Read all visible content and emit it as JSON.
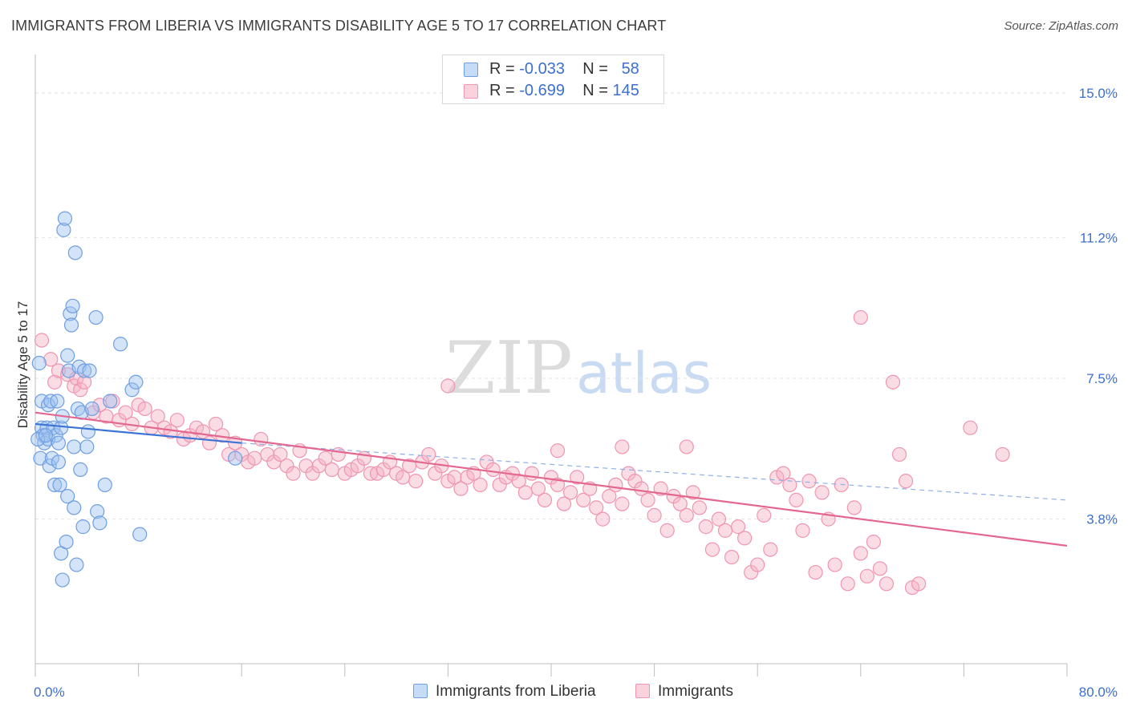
{
  "header": {
    "title": "IMMIGRANTS FROM LIBERIA VS IMMIGRANTS DISABILITY AGE 5 TO 17 CORRELATION CHART",
    "source": "Source: ZipAtlas.com"
  },
  "watermark": {
    "zip": "ZIP",
    "atlas": "atlas"
  },
  "legend": {
    "rows": [
      {
        "r_label": "R =",
        "r_value": "-0.033",
        "n_label": "N =",
        "n_value": "58",
        "color": "#9dc0ef"
      },
      {
        "r_label": "R =",
        "r_value": "-0.699",
        "n_label": "N =",
        "n_value": "145",
        "color": "#f4b2c6"
      }
    ],
    "bottom": [
      {
        "label": "Immigrants from Liberia",
        "color": "#9dc0ef"
      },
      {
        "label": "Immigrants",
        "color": "#f4b2c6"
      }
    ]
  },
  "chart_data": {
    "type": "scatter",
    "title": "IMMIGRANTS FROM LIBERIA VS IMMIGRANTS DISABILITY AGE 5 TO 17 CORRELATION CHART",
    "xlabel": "",
    "ylabel": "Disability Age 5 to 17",
    "xlim": [
      0,
      80
    ],
    "ylim": [
      0,
      15.8
    ],
    "x_tick_labels": [
      "0.0%",
      "80.0%"
    ],
    "y_ticks": [
      3.8,
      7.5,
      11.2,
      15.0
    ],
    "y_tick_labels": [
      "3.8%",
      "7.5%",
      "11.2%",
      "15.0%"
    ],
    "grid": true,
    "legend_position": "top-center",
    "colors": {
      "liberia": "#5b8ed8",
      "immigrants": "#e8769b",
      "tick_label": "#3d6fcf"
    },
    "series": [
      {
        "name": "Immigrants from Liberia",
        "marker_fill": "#9dc0ef",
        "marker_stroke": "#6f9fe0",
        "trend": {
          "x": [
            0,
            16
          ],
          "y": [
            6.3,
            5.8
          ],
          "color": "#3b74d6",
          "style": "solid"
        },
        "trend_extension": {
          "x": [
            16,
            80
          ],
          "y": [
            5.8,
            4.3
          ],
          "color": "#8eb0e6",
          "style": "dashed"
        },
        "points": [
          [
            0.3,
            7.9
          ],
          [
            0.5,
            6.9
          ],
          [
            0.5,
            6.2
          ],
          [
            0.6,
            6.0
          ],
          [
            0.7,
            5.8
          ],
          [
            0.4,
            5.4
          ],
          [
            0.9,
            6.2
          ],
          [
            1.0,
            6.8
          ],
          [
            1.0,
            5.9
          ],
          [
            1.1,
            5.2
          ],
          [
            1.2,
            6.9
          ],
          [
            1.4,
            6.2
          ],
          [
            1.3,
            5.4
          ],
          [
            1.5,
            4.7
          ],
          [
            1.6,
            6.0
          ],
          [
            1.7,
            6.9
          ],
          [
            1.8,
            5.8
          ],
          [
            1.8,
            5.3
          ],
          [
            2.0,
            6.2
          ],
          [
            2.1,
            6.5
          ],
          [
            2.0,
            2.9
          ],
          [
            2.1,
            2.2
          ],
          [
            2.2,
            11.4
          ],
          [
            2.3,
            11.7
          ],
          [
            2.4,
            3.2
          ],
          [
            2.5,
            4.4
          ],
          [
            2.5,
            8.1
          ],
          [
            2.6,
            7.7
          ],
          [
            2.7,
            9.2
          ],
          [
            2.8,
            8.9
          ],
          [
            2.9,
            9.4
          ],
          [
            3.0,
            4.1
          ],
          [
            3.0,
            5.7
          ],
          [
            3.1,
            10.8
          ],
          [
            3.2,
            2.6
          ],
          [
            3.3,
            6.7
          ],
          [
            3.4,
            7.8
          ],
          [
            3.5,
            5.1
          ],
          [
            3.6,
            6.6
          ],
          [
            3.7,
            3.6
          ],
          [
            3.8,
            7.7
          ],
          [
            4.0,
            5.7
          ],
          [
            4.1,
            6.1
          ],
          [
            4.2,
            7.7
          ],
          [
            4.4,
            6.7
          ],
          [
            4.7,
            9.1
          ],
          [
            4.8,
            4.0
          ],
          [
            5.0,
            3.7
          ],
          [
            5.4,
            4.7
          ],
          [
            5.8,
            6.9
          ],
          [
            6.6,
            8.4
          ],
          [
            7.5,
            7.2
          ],
          [
            7.8,
            7.4
          ],
          [
            8.1,
            3.4
          ],
          [
            15.5,
            5.4
          ],
          [
            0.2,
            5.9
          ],
          [
            0.8,
            6.0
          ],
          [
            1.9,
            4.7
          ]
        ]
      },
      {
        "name": "Immigrants",
        "marker_fill": "#f4b2c6",
        "marker_stroke": "#ef95b1",
        "trend": {
          "x": [
            0,
            80
          ],
          "y": [
            6.6,
            3.1
          ],
          "color": "#e3678f",
          "style": "solid"
        },
        "points": [
          [
            0.5,
            8.5
          ],
          [
            1.2,
            8.0
          ],
          [
            1.5,
            7.4
          ],
          [
            1.8,
            7.7
          ],
          [
            2.5,
            7.6
          ],
          [
            3.0,
            7.3
          ],
          [
            3.2,
            7.5
          ],
          [
            3.5,
            7.2
          ],
          [
            3.8,
            7.4
          ],
          [
            4.5,
            6.6
          ],
          [
            5.0,
            6.8
          ],
          [
            5.5,
            6.5
          ],
          [
            6.0,
            6.9
          ],
          [
            6.5,
            6.4
          ],
          [
            7.0,
            6.6
          ],
          [
            7.5,
            6.3
          ],
          [
            8.0,
            6.8
          ],
          [
            8.5,
            6.7
          ],
          [
            9.0,
            6.2
          ],
          [
            9.5,
            6.5
          ],
          [
            10.0,
            6.2
          ],
          [
            10.5,
            6.1
          ],
          [
            11.0,
            6.4
          ],
          [
            11.5,
            5.9
          ],
          [
            12.0,
            6.0
          ],
          [
            12.5,
            6.2
          ],
          [
            13.0,
            6.1
          ],
          [
            13.5,
            5.8
          ],
          [
            14.0,
            6.3
          ],
          [
            14.5,
            6.0
          ],
          [
            15.0,
            5.5
          ],
          [
            15.5,
            5.8
          ],
          [
            16.0,
            5.5
          ],
          [
            16.5,
            5.3
          ],
          [
            17.0,
            5.4
          ],
          [
            17.5,
            5.9
          ],
          [
            18.0,
            5.5
          ],
          [
            18.5,
            5.3
          ],
          [
            19.0,
            5.5
          ],
          [
            19.5,
            5.2
          ],
          [
            20.0,
            5.0
          ],
          [
            20.5,
            5.6
          ],
          [
            21.0,
            5.2
          ],
          [
            21.5,
            5.0
          ],
          [
            22.0,
            5.2
          ],
          [
            22.5,
            5.4
          ],
          [
            23.0,
            5.1
          ],
          [
            23.5,
            5.5
          ],
          [
            24.0,
            5.0
          ],
          [
            24.5,
            5.1
          ],
          [
            25.0,
            5.2
          ],
          [
            25.5,
            5.4
          ],
          [
            26.0,
            5.0
          ],
          [
            26.5,
            5.0
          ],
          [
            27.0,
            5.1
          ],
          [
            27.5,
            5.3
          ],
          [
            28.0,
            5.0
          ],
          [
            28.5,
            4.9
          ],
          [
            29.0,
            5.2
          ],
          [
            29.5,
            4.8
          ],
          [
            30.0,
            5.3
          ],
          [
            30.5,
            5.5
          ],
          [
            31.0,
            5.0
          ],
          [
            31.5,
            5.2
          ],
          [
            32.0,
            4.8
          ],
          [
            32.5,
            4.9
          ],
          [
            33.0,
            4.6
          ],
          [
            33.5,
            4.9
          ],
          [
            34.0,
            5.0
          ],
          [
            34.5,
            4.7
          ],
          [
            35.0,
            5.3
          ],
          [
            35.5,
            5.1
          ],
          [
            36.0,
            4.7
          ],
          [
            36.5,
            4.9
          ],
          [
            37.0,
            5.0
          ],
          [
            37.5,
            4.8
          ],
          [
            38.0,
            4.5
          ],
          [
            38.5,
            5.0
          ],
          [
            39.0,
            4.6
          ],
          [
            39.5,
            4.3
          ],
          [
            40.0,
            4.9
          ],
          [
            40.5,
            4.7
          ],
          [
            41.0,
            4.2
          ],
          [
            41.5,
            4.5
          ],
          [
            42.0,
            4.9
          ],
          [
            42.5,
            4.3
          ],
          [
            43.0,
            4.6
          ],
          [
            43.5,
            4.1
          ],
          [
            44.0,
            3.8
          ],
          [
            44.5,
            4.4
          ],
          [
            45.0,
            4.7
          ],
          [
            45.5,
            4.2
          ],
          [
            46.0,
            5.0
          ],
          [
            46.5,
            4.8
          ],
          [
            47.0,
            4.6
          ],
          [
            47.5,
            4.3
          ],
          [
            48.0,
            3.9
          ],
          [
            48.5,
            4.6
          ],
          [
            49.0,
            3.5
          ],
          [
            49.5,
            4.4
          ],
          [
            50.0,
            4.2
          ],
          [
            50.5,
            3.9
          ],
          [
            51.0,
            4.5
          ],
          [
            51.5,
            4.1
          ],
          [
            52.0,
            3.6
          ],
          [
            52.5,
            3.0
          ],
          [
            53.0,
            3.8
          ],
          [
            53.5,
            3.5
          ],
          [
            54.0,
            2.8
          ],
          [
            54.5,
            3.6
          ],
          [
            55.0,
            3.3
          ],
          [
            55.5,
            2.4
          ],
          [
            56.0,
            2.6
          ],
          [
            56.5,
            3.9
          ],
          [
            57.0,
            3.0
          ],
          [
            57.5,
            4.9
          ],
          [
            58.0,
            5.0
          ],
          [
            58.5,
            4.7
          ],
          [
            59.0,
            4.3
          ],
          [
            59.5,
            3.5
          ],
          [
            60.0,
            4.8
          ],
          [
            60.5,
            2.4
          ],
          [
            61.0,
            4.5
          ],
          [
            61.5,
            3.8
          ],
          [
            62.0,
            2.6
          ],
          [
            62.5,
            4.7
          ],
          [
            63.0,
            2.1
          ],
          [
            63.5,
            4.1
          ],
          [
            64.0,
            2.9
          ],
          [
            64.5,
            2.3
          ],
          [
            65.0,
            3.2
          ],
          [
            65.5,
            2.5
          ],
          [
            66.0,
            2.1
          ],
          [
            66.5,
            7.4
          ],
          [
            67.0,
            5.5
          ],
          [
            67.5,
            4.8
          ],
          [
            68.0,
            2.0
          ],
          [
            68.5,
            2.1
          ],
          [
            72.5,
            6.2
          ],
          [
            75.0,
            5.5
          ],
          [
            32.0,
            7.3
          ],
          [
            40.5,
            5.6
          ],
          [
            45.5,
            5.7
          ],
          [
            50.5,
            5.7
          ],
          [
            64.0,
            9.1
          ]
        ]
      }
    ]
  }
}
